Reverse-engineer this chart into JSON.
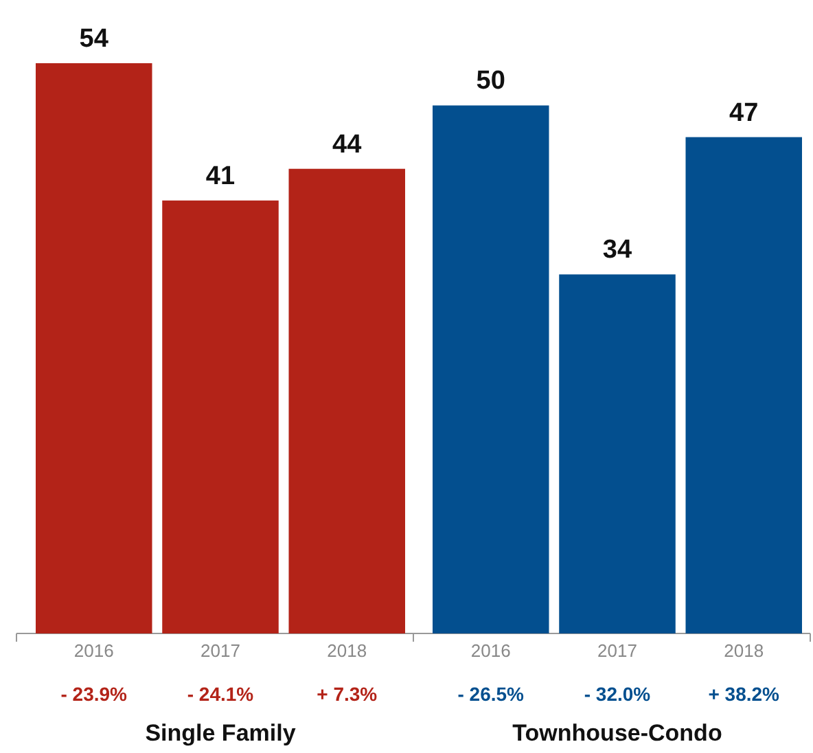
{
  "chart_data": [
    {
      "type": "bar",
      "xlabel": "Single Family",
      "categories": [
        "2016",
        "2017",
        "2018"
      ],
      "values": [
        54,
        41,
        44
      ],
      "color": "#b32318",
      "data_labels": true,
      "annotations": [
        "- 23.9%",
        "- 24.1%",
        "+ 7.3%"
      ]
    },
    {
      "type": "bar",
      "xlabel": "Townhouse-Condo",
      "categories": [
        "2016",
        "2017",
        "2018"
      ],
      "values": [
        50,
        34,
        47
      ],
      "color": "#034f8f",
      "data_labels": true,
      "annotations": [
        "- 26.5%",
        "- 32.0%",
        "+ 38.2%"
      ]
    }
  ]
}
